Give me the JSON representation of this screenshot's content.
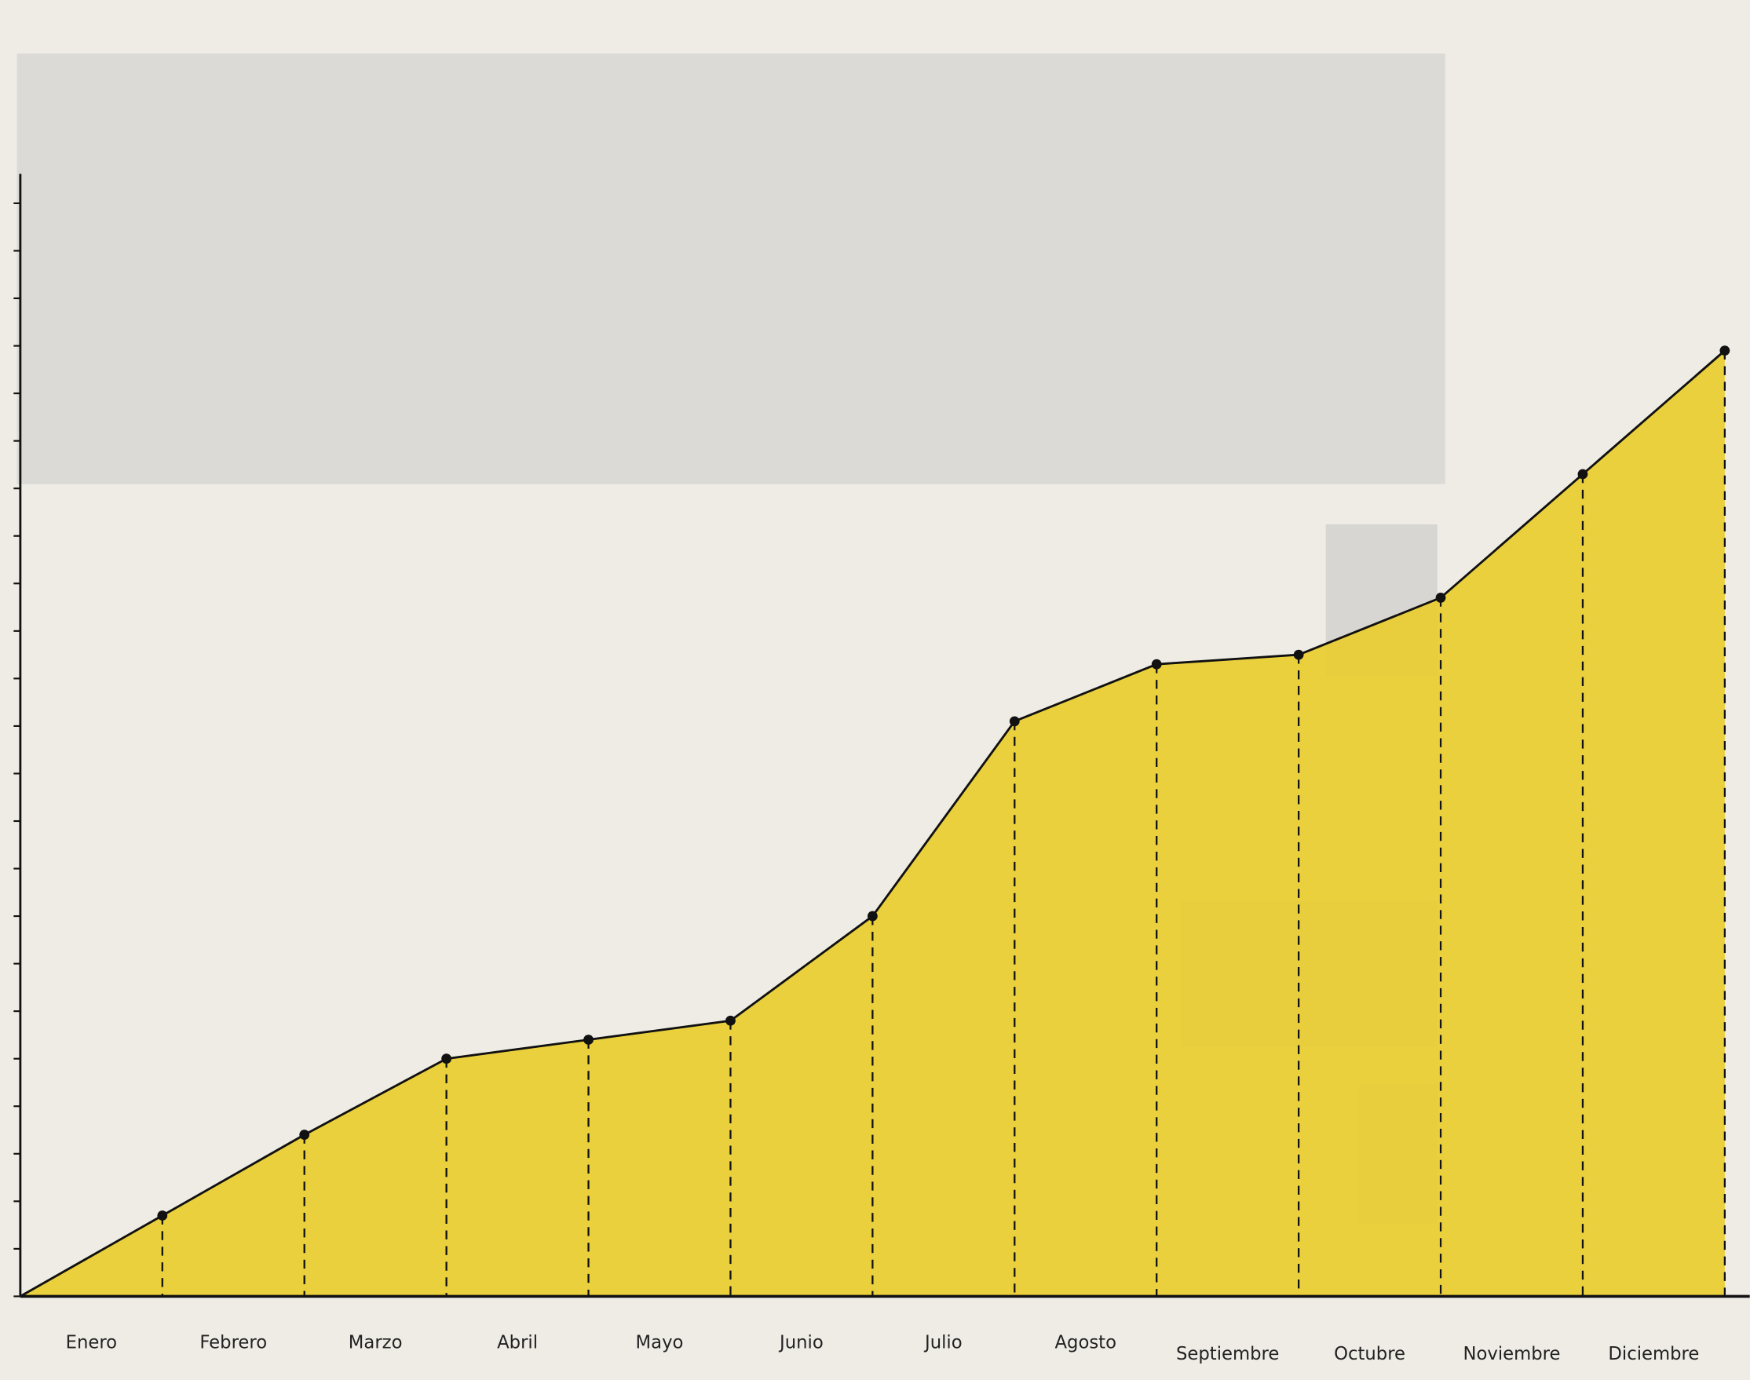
{
  "chart_data": {
    "type": "area",
    "categories": [
      "Enero",
      "Febrero",
      "Marzo",
      "Abril",
      "Mayo",
      "Junio",
      "Julio",
      "Agosto",
      "Septiembre",
      "Octubre",
      "Noviembre",
      "Diciembre"
    ],
    "values": [
      1.7,
      3.4,
      5.0,
      5.4,
      5.8,
      8.0,
      12.1,
      13.3,
      13.5,
      14.7,
      17.3,
      19.9
    ],
    "color": "#e9cd2f",
    "ylim": [
      0,
      23.5
    ],
    "yticks": [
      0,
      1,
      2,
      3,
      4,
      5,
      6,
      7,
      8,
      9,
      10,
      11,
      12,
      13,
      14,
      15,
      16,
      17,
      18,
      19,
      20,
      21,
      22,
      23
    ]
  }
}
